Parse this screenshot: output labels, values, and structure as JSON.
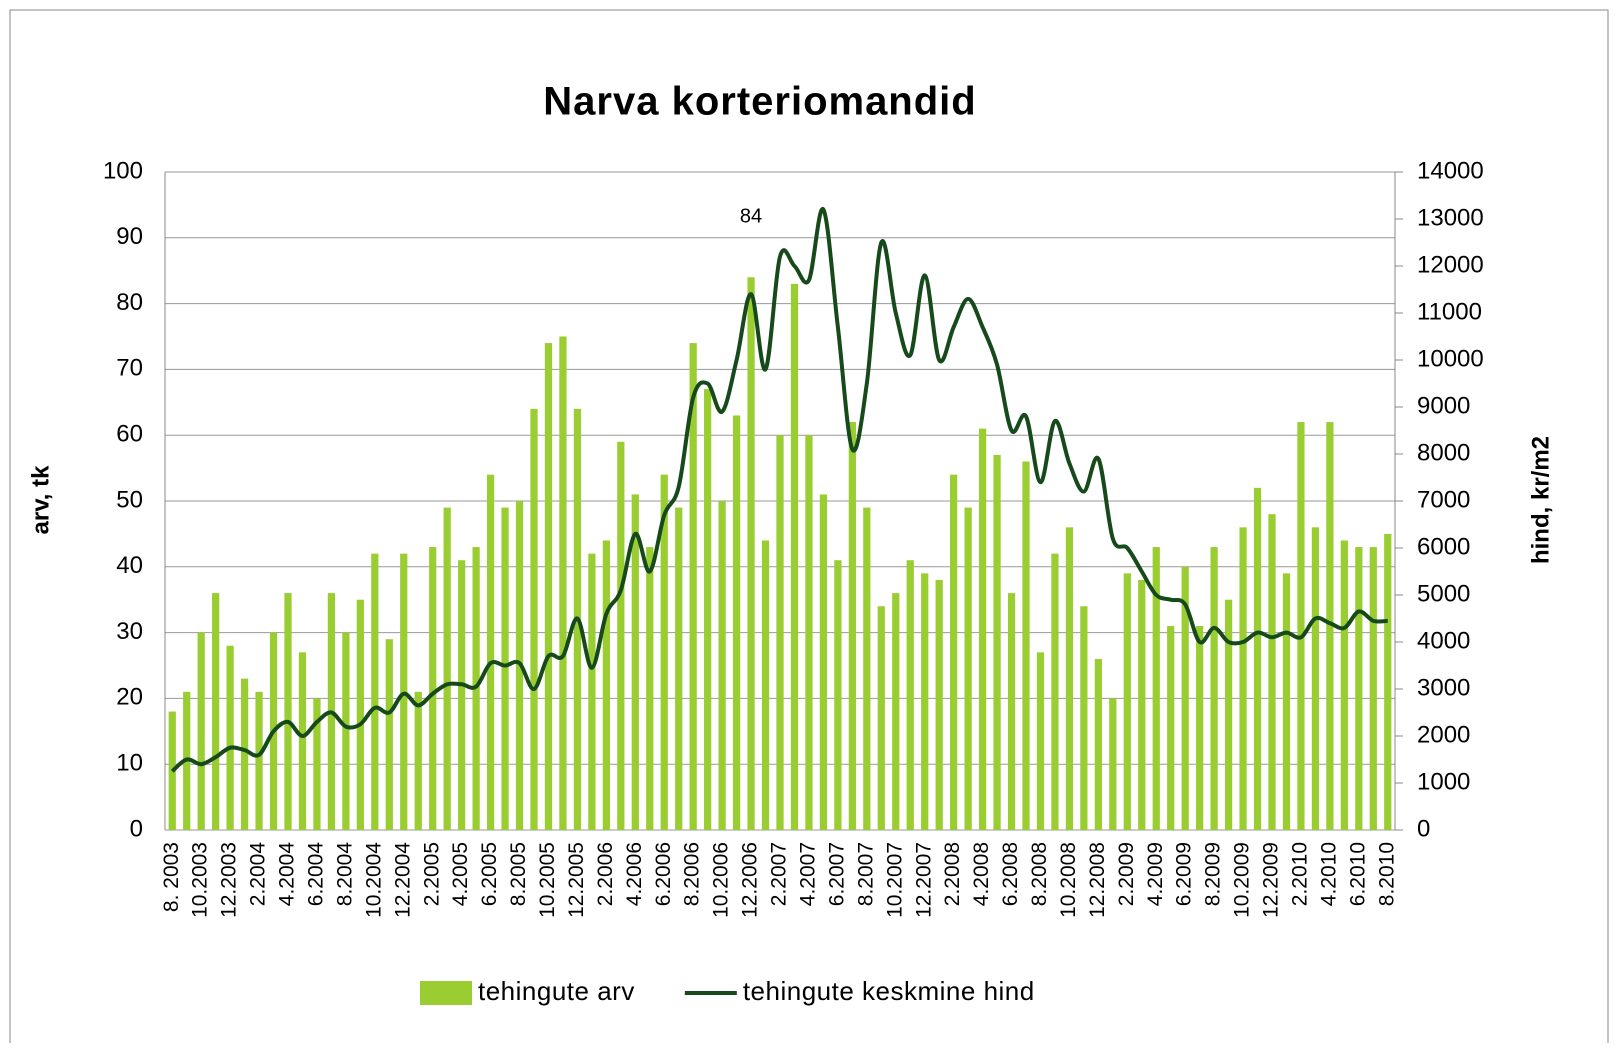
{
  "chart_data": {
    "type": "bar-line",
    "title": "Narva korteriomandid",
    "ylabel": "arv, tk",
    "y2label": "hind, kr/m2",
    "categories": [
      "8. 2003",
      null,
      "10.2003",
      null,
      "12.2003",
      null,
      "2.2004",
      null,
      "4.2004",
      null,
      "6.2004",
      null,
      "8.2004",
      null,
      "10.2004",
      null,
      "12.2004",
      null,
      "2.2005",
      null,
      "4.2005",
      null,
      "6.2005",
      null,
      "8.2005",
      null,
      "10.2005",
      null,
      "12.2005",
      null,
      "2.2006",
      null,
      "4.2006",
      null,
      "6.2006",
      null,
      "8.2006",
      null,
      "10.2006",
      null,
      "12.2006",
      null,
      "2.2007",
      null,
      "4.2007",
      null,
      "6.2007",
      null,
      "8.2007",
      null,
      "10.2007",
      null,
      "12.2007",
      null,
      "2.2008",
      null,
      "4.2008",
      null,
      "6.2008",
      null,
      "8.2008",
      null,
      "10.2008",
      null,
      "12.2008",
      null,
      "2.2009",
      null,
      "4.2009",
      null,
      "6.2009",
      null,
      "8.2009",
      null,
      "10.2009",
      null,
      "12.2009",
      null,
      "2.2010",
      null,
      "4.2010",
      null,
      "6.2010",
      null,
      "8.2010"
    ],
    "series": [
      {
        "name": "tehingute arv",
        "type": "bar",
        "color": "#9acd32",
        "axis": "y",
        "values": [
          18,
          21,
          30,
          36,
          28,
          23,
          21,
          30,
          36,
          27,
          20,
          36,
          30,
          35,
          42,
          29,
          42,
          21,
          43,
          49,
          41,
          43,
          54,
          49,
          50,
          64,
          74,
          75,
          64,
          42,
          44,
          59,
          51,
          43,
          54,
          49,
          74,
          67,
          50,
          63,
          84,
          44,
          60,
          83,
          60,
          51,
          41,
          62,
          49,
          34,
          36,
          41,
          39,
          38,
          54,
          49,
          61,
          57,
          36,
          56,
          27,
          42,
          46,
          34,
          26,
          20,
          39,
          38,
          43,
          31,
          40,
          31,
          43,
          35,
          46,
          52,
          48,
          39,
          62,
          46,
          62,
          44,
          43,
          43,
          45
        ],
        "value_labels": [
          null,
          null,
          null,
          null,
          null,
          null,
          null,
          null,
          null,
          null,
          null,
          null,
          null,
          null,
          null,
          null,
          null,
          null,
          null,
          null,
          null,
          null,
          null,
          null,
          null,
          null,
          null,
          null,
          null,
          null,
          null,
          null,
          null,
          null,
          null,
          null,
          null,
          null,
          null,
          null,
          "84",
          null,
          null,
          null,
          null,
          null,
          null,
          null,
          null,
          null,
          null,
          null,
          null,
          null,
          null,
          null,
          null,
          null,
          null,
          null,
          null,
          null,
          null,
          null,
          null,
          null,
          null,
          null,
          null,
          null,
          null,
          null,
          null,
          null,
          null,
          null,
          null,
          null,
          null,
          null,
          null,
          null,
          null,
          null,
          null
        ]
      },
      {
        "name": "tehingute keskmine hind",
        "type": "line",
        "color": "#174a1b",
        "axis": "y2",
        "values": [
          1250,
          1500,
          1400,
          1550,
          1750,
          1700,
          1600,
          2100,
          2300,
          2000,
          2300,
          2500,
          2200,
          2250,
          2600,
          2500,
          2900,
          2650,
          2900,
          3100,
          3100,
          3050,
          3550,
          3500,
          3550,
          3000,
          3700,
          3700,
          4500,
          3450,
          4600,
          5100,
          6300,
          5500,
          6700,
          7300,
          9200,
          9500,
          8900,
          10000,
          11400,
          9800,
          12200,
          12000,
          11700,
          13200,
          10700,
          8100,
          9500,
          12500,
          11000,
          10100,
          11800,
          10000,
          10700,
          11300,
          10700,
          9900,
          8500,
          8800,
          7400,
          8700,
          7800,
          7200,
          7900,
          6200,
          6000,
          5500,
          5000,
          4900,
          4800,
          4000,
          4300,
          4000,
          4000,
          4200,
          4100,
          4200,
          4100,
          4500,
          4400,
          4300,
          4650,
          4450,
          4450
        ]
      }
    ],
    "ylim": [
      0,
      100
    ],
    "yticks": [
      0,
      10,
      20,
      30,
      40,
      50,
      60,
      70,
      80,
      90,
      100
    ],
    "y2lim": [
      0,
      14000
    ],
    "y2ticks": [
      0,
      1000,
      2000,
      3000,
      4000,
      5000,
      6000,
      7000,
      8000,
      9000,
      10000,
      11000,
      12000,
      13000,
      14000
    ],
    "grid": true,
    "legend": "bottom"
  }
}
